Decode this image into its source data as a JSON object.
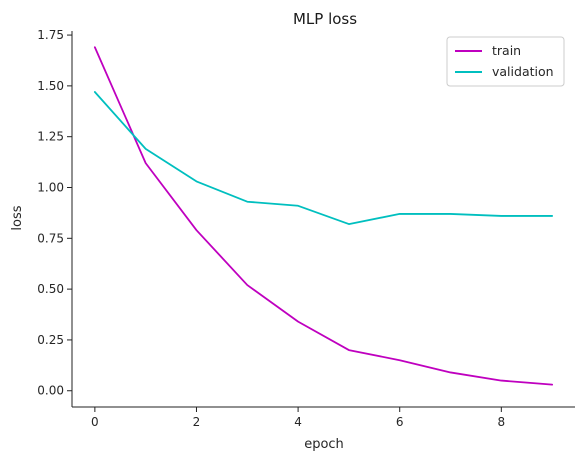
{
  "chart_data": {
    "type": "line",
    "title": "MLP loss",
    "xlabel": "epoch",
    "ylabel": "loss",
    "x": [
      0,
      1,
      2,
      3,
      4,
      5,
      6,
      7,
      8,
      9
    ],
    "xlim": [
      -0.45,
      9.45
    ],
    "ylim": [
      -0.08,
      1.77
    ],
    "xticks": [
      0,
      2,
      4,
      6,
      8
    ],
    "yticks": [
      0.0,
      0.25,
      0.5,
      0.75,
      1.0,
      1.25,
      1.5,
      1.75
    ],
    "ytick_labels": [
      "0.00",
      "0.25",
      "0.50",
      "0.75",
      "1.00",
      "1.25",
      "1.50",
      "1.75"
    ],
    "grid": false,
    "legend_position": "top-right",
    "series": [
      {
        "name": "train",
        "color": "#bf00bf",
        "values": [
          1.69,
          1.12,
          0.79,
          0.52,
          0.34,
          0.2,
          0.15,
          0.09,
          0.05,
          0.03
        ]
      },
      {
        "name": "validation",
        "color": "#00bfbf",
        "values": [
          1.47,
          1.19,
          1.03,
          0.93,
          0.91,
          0.82,
          0.87,
          0.87,
          0.86,
          0.86
        ]
      }
    ]
  }
}
